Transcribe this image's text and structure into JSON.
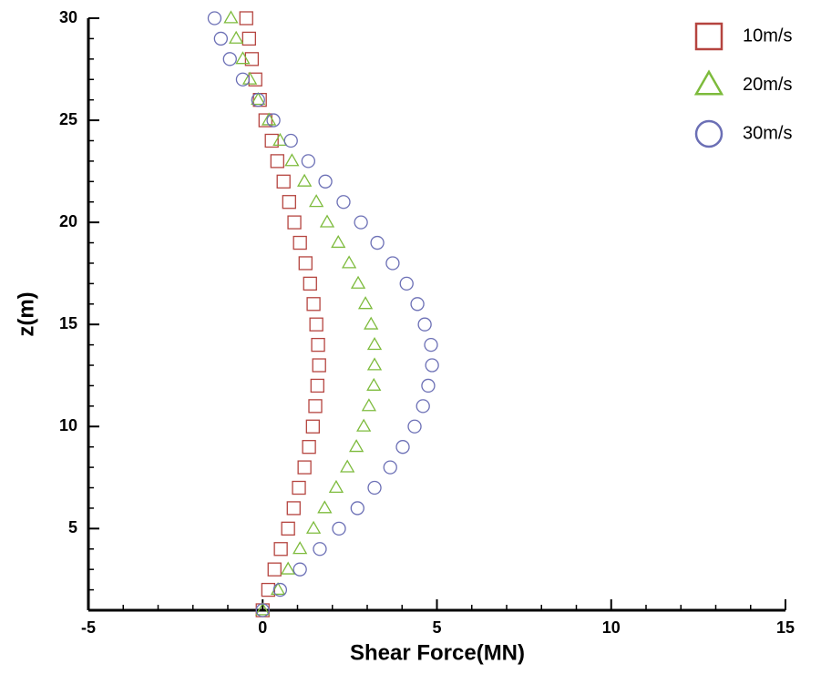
{
  "chart_data": {
    "type": "scatter",
    "x_label": "Shear Force(MN)",
    "y_label": "z(m)",
    "xlim": [
      -5,
      15
    ],
    "ylim": [
      1,
      30
    ],
    "xticks": [
      -5,
      0,
      5,
      10,
      15
    ],
    "yticks": [
      5,
      10,
      15,
      20,
      25,
      30
    ],
    "grid": false,
    "legend": "top-right",
    "series": [
      {
        "name": "10m/s",
        "color": "#b5443f",
        "marker": "square",
        "x": [
          -0.47,
          -0.39,
          -0.31,
          -0.21,
          -0.08,
          0.08,
          0.26,
          0.42,
          0.6,
          0.76,
          0.91,
          1.07,
          1.23,
          1.36,
          1.46,
          1.54,
          1.59,
          1.62,
          1.57,
          1.51,
          1.44,
          1.33,
          1.2,
          1.04,
          0.89,
          0.73,
          0.52,
          0.34,
          0.16,
          0
        ],
        "y": [
          30,
          29,
          28,
          27,
          26,
          25,
          24,
          23,
          22,
          21,
          20,
          19,
          18,
          17,
          16,
          15,
          14,
          13,
          12,
          11,
          10,
          9,
          8,
          7,
          6,
          5,
          4,
          3,
          2,
          1
        ]
      },
      {
        "name": "20m/s",
        "color": "#7dbb3c",
        "marker": "triangle",
        "x": [
          -0.91,
          -0.76,
          -0.57,
          -0.37,
          -0.13,
          0.18,
          0.5,
          0.84,
          1.2,
          1.54,
          1.85,
          2.17,
          2.48,
          2.74,
          2.95,
          3.11,
          3.21,
          3.21,
          3.19,
          3.05,
          2.9,
          2.69,
          2.43,
          2.11,
          1.78,
          1.46,
          1.07,
          0.73,
          0.44,
          0
        ],
        "y": [
          30,
          29,
          28,
          27,
          26,
          25,
          24,
          23,
          22,
          21,
          20,
          19,
          18,
          17,
          16,
          15,
          14,
          13,
          12,
          11,
          10,
          9,
          8,
          7,
          6,
          5,
          4,
          3,
          2,
          1
        ]
      },
      {
        "name": "30m/s",
        "color": "#6b6fb5",
        "marker": "circle",
        "x": [
          -1.38,
          -1.2,
          -0.94,
          -0.57,
          -0.13,
          0.31,
          0.81,
          1.31,
          1.8,
          2.32,
          2.82,
          3.29,
          3.73,
          4.13,
          4.44,
          4.65,
          4.83,
          4.86,
          4.75,
          4.6,
          4.36,
          4.02,
          3.66,
          3.21,
          2.72,
          2.19,
          1.64,
          1.07,
          0.5,
          0
        ],
        "y": [
          30,
          29,
          28,
          27,
          26,
          25,
          24,
          23,
          22,
          21,
          20,
          19,
          18,
          17,
          16,
          15,
          14,
          13,
          12,
          11,
          10,
          9,
          8,
          7,
          6,
          5,
          4,
          3,
          2,
          1
        ]
      }
    ]
  }
}
